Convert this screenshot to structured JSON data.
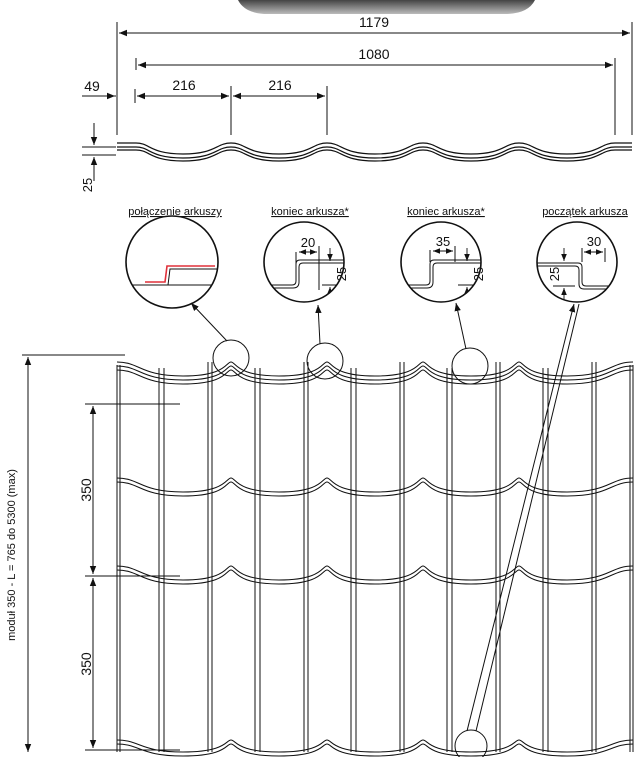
{
  "dimensions": {
    "total_width": "1179",
    "effective_width": "1080",
    "edge_offset": "49",
    "module_1": "216",
    "module_2": "216",
    "profile_height": "25",
    "row_1": "350",
    "row_2": "350",
    "length_range": "moduł 350 - L = 765 do 5300 (max)"
  },
  "details": [
    {
      "label": "połączenie arkuszy"
    },
    {
      "label": "koniec arkusza*",
      "width": "20",
      "height": "25"
    },
    {
      "label": "koniec arkusza*",
      "width": "35",
      "height": "25"
    },
    {
      "label": "początek arkusza",
      "width": "30",
      "height": "25"
    }
  ],
  "colors": {
    "line": "#111111",
    "joint_accent": "#e0303a",
    "shadow": "#555555"
  }
}
